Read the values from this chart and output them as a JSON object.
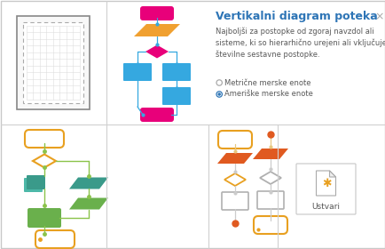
{
  "title": "Vertikalni diagram poteka",
  "close_symbol": "×",
  "description": "Najboljši za postopke od zgoraj navzdol ali\nsisteme, ki so hierarhično urejeni ali vključujejo\nštevilne sestavne postopke.",
  "radio1": "Metrične merske enote",
  "radio2": "Ameriške merske enote",
  "button_label": "Ustvari",
  "bg_color": "#ffffff",
  "panel_bg": "#ffffff",
  "outer_border": "#c8c8c8",
  "grid_border": "#888888",
  "title_color": "#2e75b6",
  "text_color": "#595959",
  "close_color": "#aaaaaa",
  "pink": "#e8007a",
  "orange": "#f0a030",
  "blue": "#35a8e0",
  "teal": "#3a9a8a",
  "green": "#6ab04c",
  "gold": "#e8a020",
  "red_orange": "#e05a20",
  "panel_line": "#d0d0d0"
}
